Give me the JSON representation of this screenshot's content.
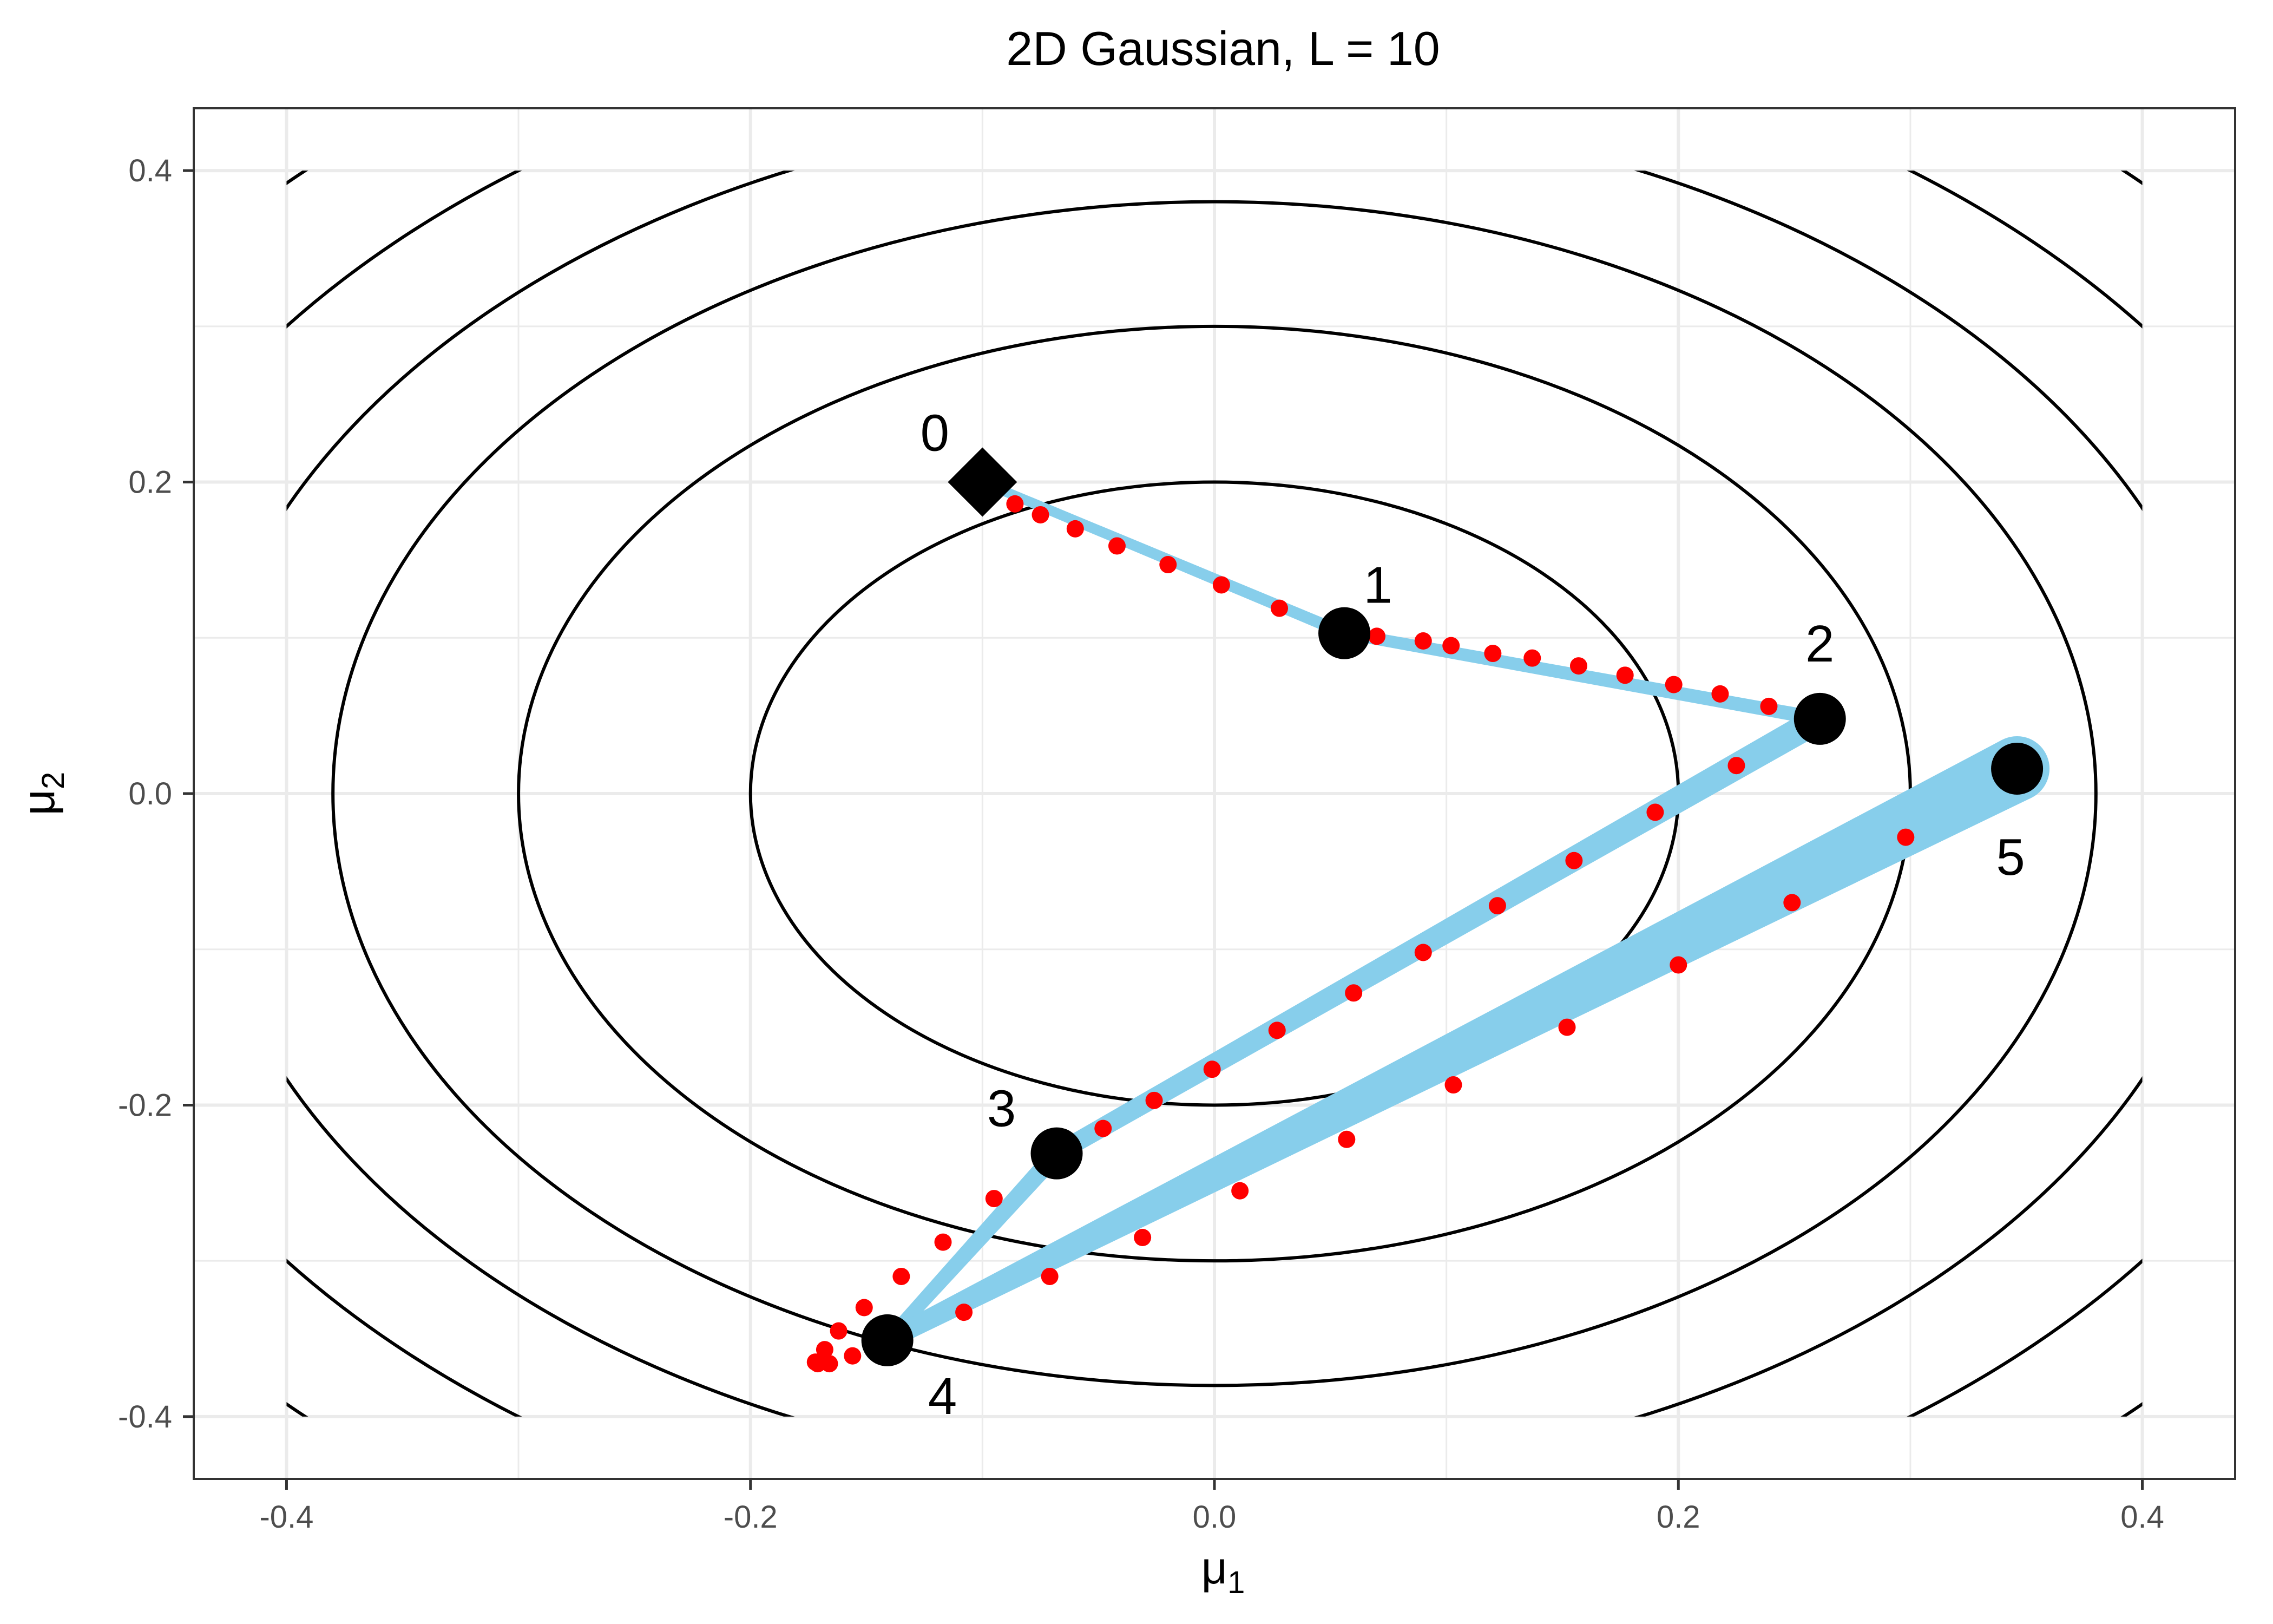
{
  "chart_data": {
    "type": "scatter",
    "title": "2D Gaussian, L = 10",
    "xlabel": {
      "base": "μ",
      "sub": "1"
    },
    "ylabel": {
      "base": "μ",
      "sub": "2"
    },
    "xlim": [
      -0.44,
      0.44
    ],
    "ylim": [
      -0.44,
      0.44
    ],
    "x_ticks": [
      -0.4,
      -0.2,
      0.0,
      0.2,
      0.4
    ],
    "x_tick_labels": [
      "-0.4",
      "-0.2",
      "0.0",
      "0.2",
      "0.4"
    ],
    "y_ticks": [
      -0.4,
      -0.2,
      0.0,
      0.2,
      0.4
    ],
    "y_tick_labels": [
      "-0.4",
      "-0.2",
      "0.0",
      "0.2",
      "0.4"
    ],
    "grid": true,
    "contour_levels": [
      {
        "a": 0.2,
        "b": 0.2
      },
      {
        "a": 0.3,
        "b": 0.3
      },
      {
        "a": 0.38,
        "b": 0.38
      },
      {
        "a": 0.44,
        "b": 0.44
      },
      {
        "a": 0.5,
        "b": 0.5
      },
      {
        "a": 0.56,
        "b": 0.56
      }
    ],
    "contour_center": [
      0.0,
      0.0
    ],
    "trajectory": [
      {
        "id": "0",
        "x": -0.1,
        "y": 0.2,
        "marker": "diamond"
      },
      {
        "id": "1",
        "x": 0.056,
        "y": 0.103,
        "marker": "circle"
      },
      {
        "id": "2",
        "x": 0.261,
        "y": 0.048,
        "marker": "circle"
      },
      {
        "id": "3",
        "x": -0.068,
        "y": -0.231,
        "marker": "circle"
      },
      {
        "id": "4",
        "x": -0.141,
        "y": -0.351,
        "marker": "circle"
      },
      {
        "id": "5",
        "x": 0.346,
        "y": 0.016,
        "marker": "circle"
      }
    ],
    "path_points": [
      [
        -0.086,
        0.186
      ],
      [
        -0.075,
        0.179
      ],
      [
        -0.06,
        0.17
      ],
      [
        -0.042,
        0.159
      ],
      [
        -0.02,
        0.147
      ],
      [
        0.003,
        0.134
      ],
      [
        0.028,
        0.119
      ],
      [
        0.07,
        0.101
      ],
      [
        0.09,
        0.098
      ],
      [
        0.102,
        0.095
      ],
      [
        0.12,
        0.09
      ],
      [
        0.137,
        0.087
      ],
      [
        0.157,
        0.082
      ],
      [
        0.177,
        0.076
      ],
      [
        0.198,
        0.07
      ],
      [
        0.218,
        0.064
      ],
      [
        0.239,
        0.056
      ],
      [
        0.225,
        0.018
      ],
      [
        0.19,
        -0.012
      ],
      [
        0.155,
        -0.043
      ],
      [
        0.122,
        -0.072
      ],
      [
        0.09,
        -0.102
      ],
      [
        0.06,
        -0.128
      ],
      [
        0.027,
        -0.152
      ],
      [
        -0.001,
        -0.177
      ],
      [
        -0.026,
        -0.197
      ],
      [
        -0.048,
        -0.215
      ],
      [
        -0.095,
        -0.26
      ],
      [
        -0.117,
        -0.288
      ],
      [
        -0.135,
        -0.31
      ],
      [
        -0.151,
        -0.33
      ],
      [
        -0.162,
        -0.345
      ],
      [
        -0.168,
        -0.357
      ],
      [
        -0.172,
        -0.365
      ],
      [
        -0.171,
        -0.366
      ],
      [
        -0.166,
        -0.366
      ],
      [
        -0.156,
        -0.361
      ],
      [
        -0.108,
        -0.333
      ],
      [
        -0.071,
        -0.31
      ],
      [
        -0.031,
        -0.285
      ],
      [
        0.011,
        -0.255
      ],
      [
        0.057,
        -0.222
      ],
      [
        0.103,
        -0.187
      ],
      [
        0.152,
        -0.15
      ],
      [
        0.2,
        -0.11
      ],
      [
        0.249,
        -0.07
      ],
      [
        0.298,
        -0.028
      ]
    ],
    "segment_widths": [
      {
        "from": "0",
        "to": "1",
        "start": 18,
        "end": 22
      },
      {
        "from": "1",
        "to": "2",
        "start": 22,
        "end": 26
      },
      {
        "from": "2",
        "to": "3",
        "start": 50,
        "end": 34
      },
      {
        "from": "3",
        "to": "4",
        "start": 34,
        "end": 24
      },
      {
        "from": "4",
        "to": "5",
        "start": 34,
        "end": 120
      }
    ],
    "colors": {
      "contour": "#000000",
      "path_band": "#87ceeb",
      "path_points": "#ff0000",
      "markers": "#000000",
      "grid": "#ebebeb",
      "panel_border": "#333333"
    }
  }
}
